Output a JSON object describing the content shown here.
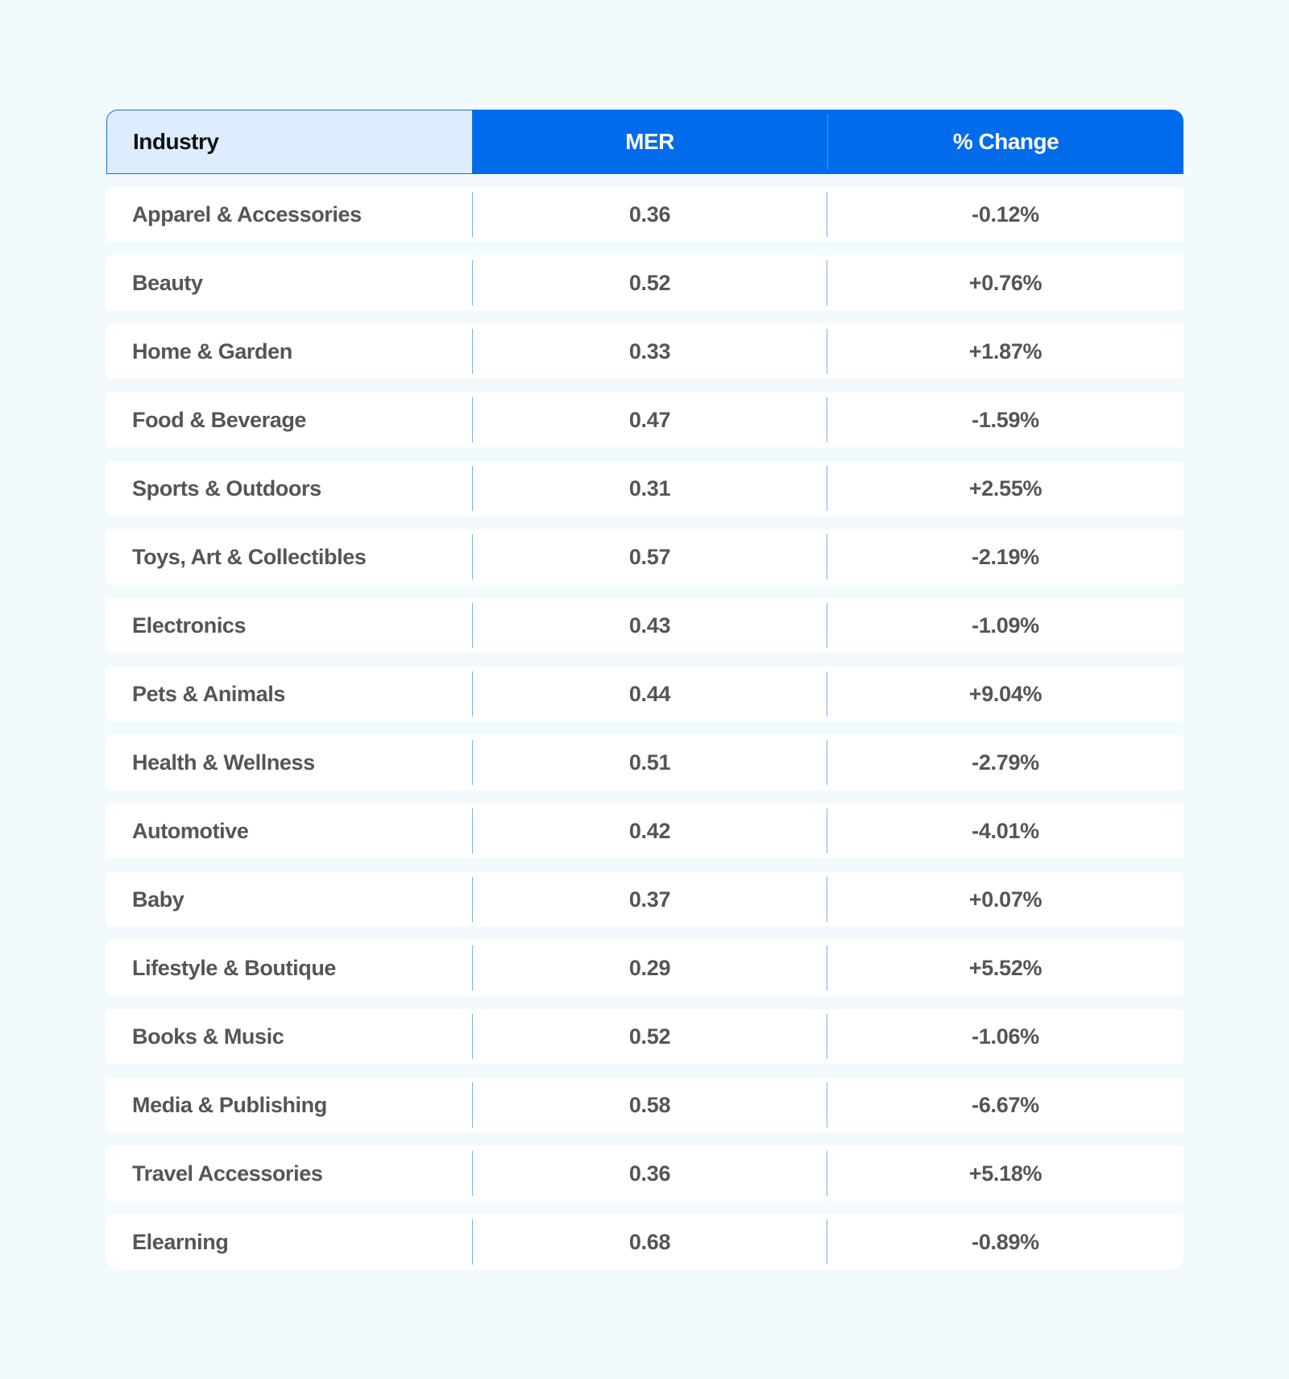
{
  "headers": {
    "industry": "Industry",
    "mer": "MER",
    "change": "% Change"
  },
  "colors": {
    "header_blue": "#006CEB",
    "header_light": "#DDEDFD",
    "background": "#F3FAFE",
    "text": "#555555"
  },
  "rows": [
    {
      "industry": "Apparel & Accessories",
      "mer": "0.36",
      "change": "-0.12%"
    },
    {
      "industry": "Beauty",
      "mer": "0.52",
      "change": "+0.76%"
    },
    {
      "industry": "Home & Garden",
      "mer": "0.33",
      "change": "+1.87%"
    },
    {
      "industry": "Food & Beverage",
      "mer": "0.47",
      "change": "-1.59%"
    },
    {
      "industry": "Sports & Outdoors",
      "mer": "0.31",
      "change": "+2.55%"
    },
    {
      "industry": "Toys, Art & Collectibles",
      "mer": "0.57",
      "change": "-2.19%"
    },
    {
      "industry": "Electronics",
      "mer": "0.43",
      "change": "-1.09%"
    },
    {
      "industry": "Pets & Animals",
      "mer": "0.44",
      "change": "+9.04%"
    },
    {
      "industry": "Health & Wellness",
      "mer": "0.51",
      "change": "-2.79%"
    },
    {
      "industry": "Automotive",
      "mer": "0.42",
      "change": "-4.01%"
    },
    {
      "industry": "Baby",
      "mer": "0.37",
      "change": "+0.07%"
    },
    {
      "industry": "Lifestyle & Boutique",
      "mer": "0.29",
      "change": "+5.52%"
    },
    {
      "industry": "Books & Music",
      "mer": "0.52",
      "change": "-1.06%"
    },
    {
      "industry": "Media & Publishing",
      "mer": "0.58",
      "change": "-6.67%"
    },
    {
      "industry": "Travel Accessories",
      "mer": "0.36",
      "change": "+5.18%"
    },
    {
      "industry": "Elearning",
      "mer": "0.68",
      "change": "-0.89%"
    }
  ]
}
